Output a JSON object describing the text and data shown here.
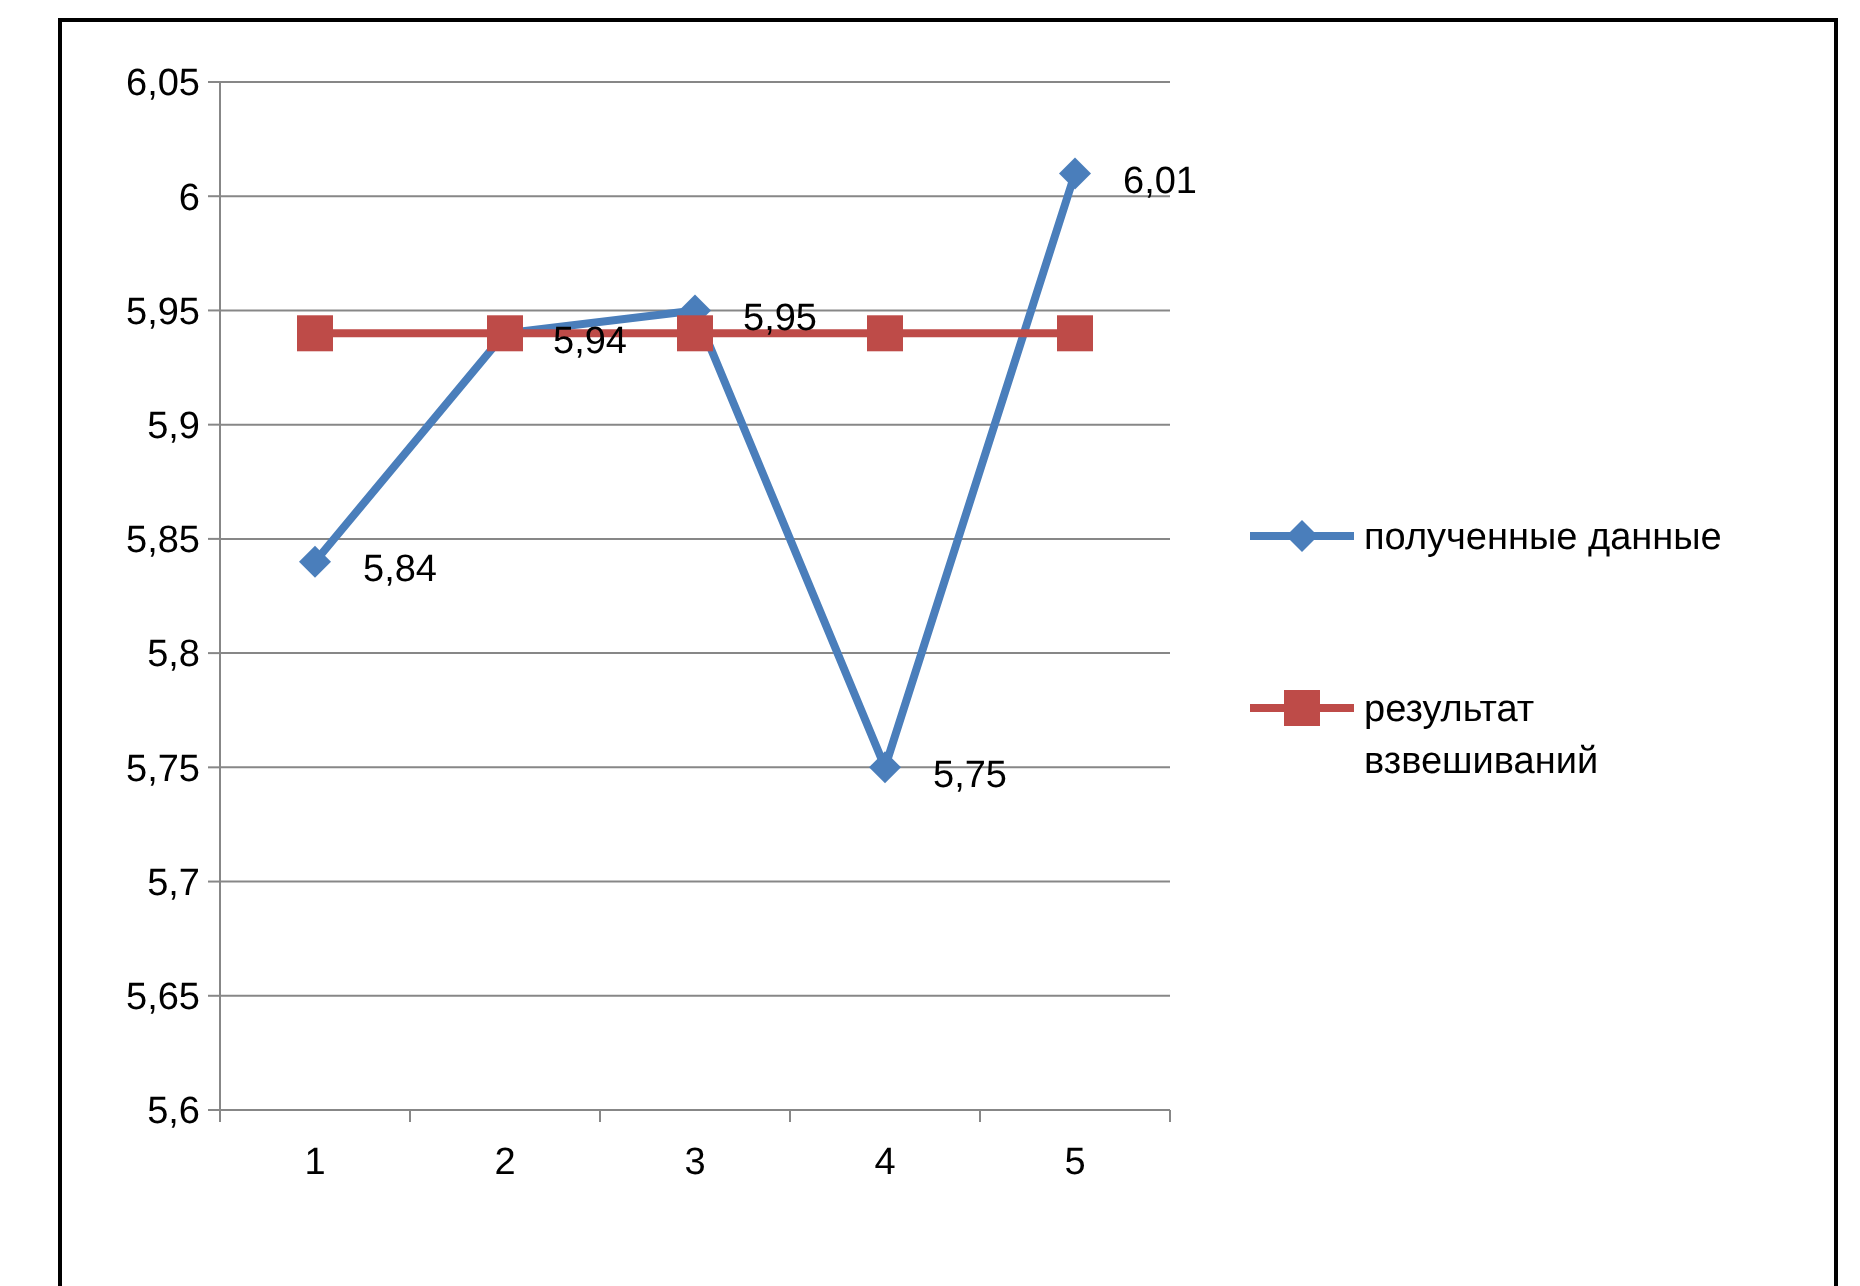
{
  "chart_data": {
    "type": "line",
    "categories": [
      "1",
      "2",
      "3",
      "4",
      "5"
    ],
    "series": [
      {
        "name": "полученные данные",
        "color": "#4a7ebb",
        "marker": "diamond",
        "values": [
          5.84,
          5.94,
          5.95,
          5.75,
          6.01
        ],
        "value_labels": [
          "5,84",
          "5,94",
          "5,95",
          "5,75",
          "6,01"
        ]
      },
      {
        "name": "результат взвешиваний",
        "color": "#be4b48",
        "marker": "square",
        "values": [
          5.94,
          5.94,
          5.94,
          5.94,
          5.94
        ]
      }
    ],
    "ylim": [
      5.6,
      6.05
    ],
    "yticks": [
      {
        "value": 5.6,
        "label": "5,6"
      },
      {
        "value": 5.65,
        "label": "5,65"
      },
      {
        "value": 5.7,
        "label": "5,7"
      },
      {
        "value": 5.75,
        "label": "5,75"
      },
      {
        "value": 5.8,
        "label": "5,8"
      },
      {
        "value": 5.85,
        "label": "5,85"
      },
      {
        "value": 5.9,
        "label": "5,9"
      },
      {
        "value": 5.95,
        "label": "5,95"
      },
      {
        "value": 6,
        "label": "6"
      },
      {
        "value": 6.05,
        "label": "6,05"
      }
    ],
    "grid": "y",
    "legend": "right"
  }
}
